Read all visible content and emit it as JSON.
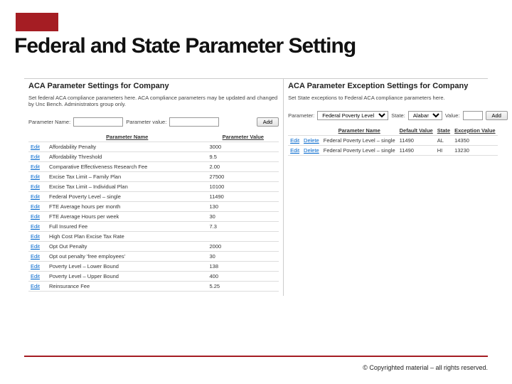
{
  "title": "Federal and State Parameter Setting",
  "footer": "© Copyrighted material – all rights reserved.",
  "colors": {
    "accent": "#a51d23",
    "link": "#0066cc",
    "border": "#cccccc"
  },
  "federal": {
    "panel_title": "ACA Parameter Settings for Company",
    "description": "Set federal ACA compliance parameters here. ACA compliance parameters may be updated and changed by Unc Bench. Administrators group only.",
    "label_param_name": "Parameter Name:",
    "label_param_value": "Parameter value:",
    "input_name": "",
    "input_value": "",
    "btn_add": "Add",
    "columns": [
      "Parameter Name",
      "Parameter Value"
    ],
    "edit_label": "Edit",
    "rows": [
      {
        "name": "Affordability Penalty",
        "value": "3000"
      },
      {
        "name": "Affordability Threshold",
        "value": "9.5"
      },
      {
        "name": "Comparative Effectiveness Research Fee",
        "value": "2.00"
      },
      {
        "name": "Excise Tax Limit – Family Plan",
        "value": "27500"
      },
      {
        "name": "Excise Tax Limit – Individual Plan",
        "value": "10100"
      },
      {
        "name": "Federal Poverty Level – single",
        "value": "11490"
      },
      {
        "name": "FTE Average hours per month",
        "value": "130"
      },
      {
        "name": "FTE Average Hours per week",
        "value": "30"
      },
      {
        "name": "Full Insured Fee",
        "value": "7.3"
      },
      {
        "name": "High Cost Plan Excise Tax Rate",
        "value": ""
      },
      {
        "name": "Opt Out Penalty",
        "value": "2000"
      },
      {
        "name": "Opt out penalty 'free employees'",
        "value": "30"
      },
      {
        "name": "Poverty Level – Lower Bound",
        "value": "138"
      },
      {
        "name": "Poverty Level – Upper Bound",
        "value": "400"
      },
      {
        "name": "Reinsurance Fee",
        "value": "5.25"
      }
    ]
  },
  "state": {
    "panel_title": "ACA Parameter Exception Settings for Company",
    "description": "Set State exceptions to Federal ACA compliance parameters here.",
    "label_param": "Parameter:",
    "label_state": "State:",
    "label_value": "Value:",
    "select_param": "Federal Poverty Level – single",
    "select_state": "Alabama",
    "input_value": "",
    "btn_add": "Add",
    "columns": [
      "Parameter Name",
      "Default Value",
      "State",
      "Exception Value"
    ],
    "edit_label": "Edit",
    "delete_label": "Delete",
    "rows": [
      {
        "name": "Federal Poverty Level – single",
        "default": "11490",
        "state": "AL",
        "exception": "14350"
      },
      {
        "name": "Federal Poverty Level – single",
        "default": "11490",
        "state": "HI",
        "exception": "13230"
      }
    ]
  }
}
